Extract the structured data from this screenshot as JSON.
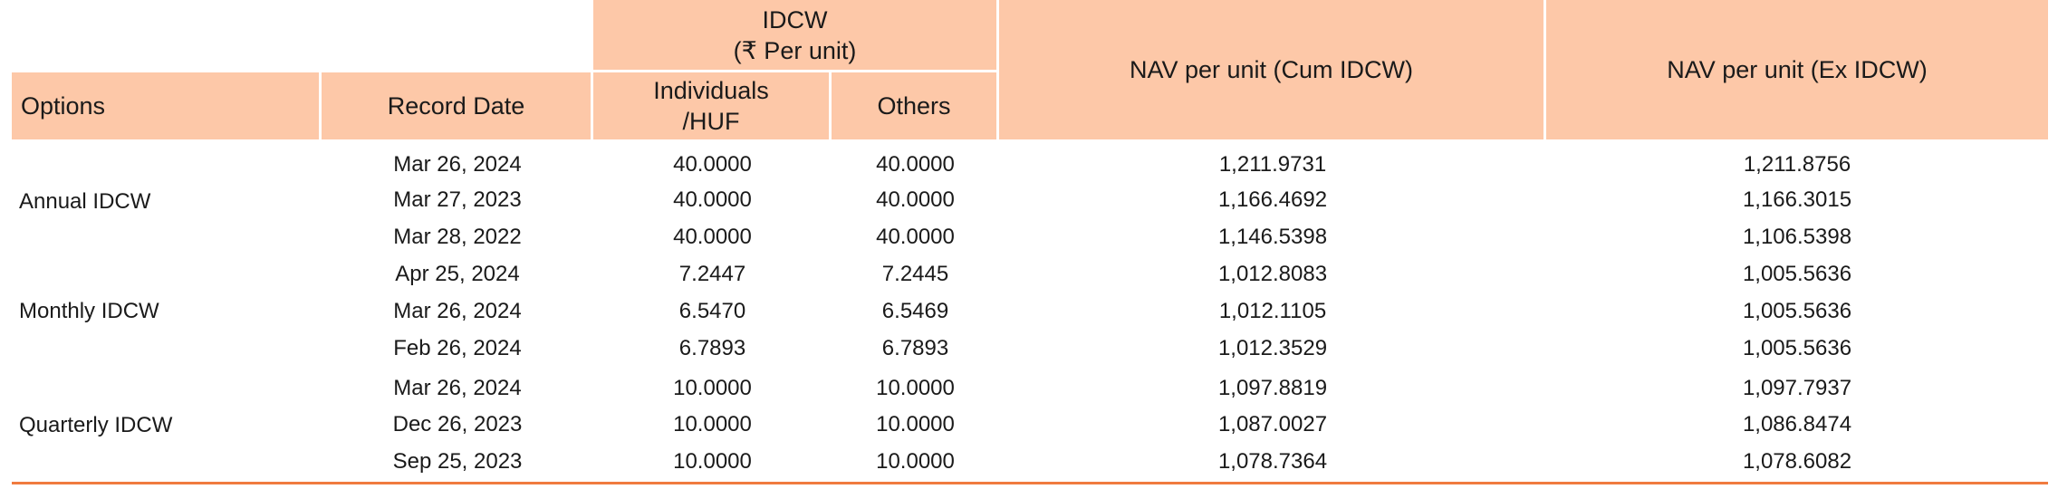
{
  "header": {
    "options": "Options",
    "record_date": "Record Date",
    "idcw_group_line1": "IDCW",
    "idcw_group_line2": "(₹ Per unit)",
    "individuals_line1": "Individuals",
    "individuals_line2": "/HUF",
    "others": "Others",
    "nav_cum": "NAV per unit (Cum IDCW)",
    "nav_ex": "NAV per unit (Ex IDCW)"
  },
  "groups": [
    {
      "option": "Annual IDCW",
      "rows": [
        {
          "date": "Mar 26, 2024",
          "individuals": "40.0000",
          "others": "40.0000",
          "nav_cum": "1,211.9731",
          "nav_ex": "1,211.8756"
        },
        {
          "date": "Mar 27, 2023",
          "individuals": "40.0000",
          "others": "40.0000",
          "nav_cum": "1,166.4692",
          "nav_ex": "1,166.3015"
        },
        {
          "date": "Mar 28, 2022",
          "individuals": "40.0000",
          "others": "40.0000",
          "nav_cum": "1,146.5398",
          "nav_ex": "1,106.5398"
        }
      ]
    },
    {
      "option": "Monthly IDCW",
      "rows": [
        {
          "date": "Apr 25, 2024",
          "individuals": "7.2447",
          "others": "7.2445",
          "nav_cum": "1,012.8083",
          "nav_ex": "1,005.5636"
        },
        {
          "date": "Mar 26, 2024",
          "individuals": "6.5470",
          "others": "6.5469",
          "nav_cum": "1,012.1105",
          "nav_ex": "1,005.5636"
        },
        {
          "date": "Feb 26, 2024",
          "individuals": "6.7893",
          "others": "6.7893",
          "nav_cum": "1,012.3529",
          "nav_ex": "1,005.5636"
        }
      ]
    },
    {
      "option": "Quarterly IDCW",
      "rows": [
        {
          "date": "Mar 26, 2024",
          "individuals": "10.0000",
          "others": "10.0000",
          "nav_cum": "1,097.8819",
          "nav_ex": "1,097.7937"
        },
        {
          "date": "Dec 26, 2023",
          "individuals": "10.0000",
          "others": "10.0000",
          "nav_cum": "1,087.0027",
          "nav_ex": "1,086.8474"
        },
        {
          "date": "Sep 25, 2023",
          "individuals": "10.0000",
          "others": "10.0000",
          "nav_cum": "1,078.7364",
          "nav_ex": "1,078.6082"
        }
      ]
    }
  ],
  "colors": {
    "header_fill": "#fdc8a8",
    "bottom_rule": "#f07b3f",
    "text": "#1a1a1a"
  }
}
